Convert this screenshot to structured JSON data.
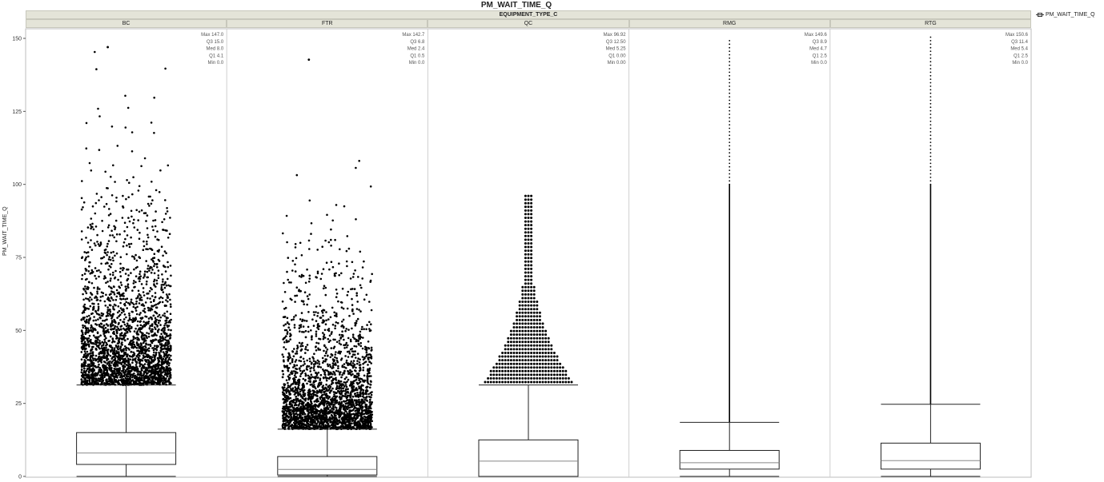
{
  "chart_title": "PM_WAIT_TIME_Q",
  "group_header": "EQUIPMENT_TYPE_C",
  "y_axis_label": "PM_WAIT_TIME_Q",
  "legend_label": "PM_WAIT_TIME_Q",
  "colors": {
    "points": "#000000",
    "box": "#222222",
    "median": "#888888",
    "header_bg": "#e4e4d8",
    "grid": "#d6d6d6"
  },
  "chart_data": {
    "type": "box",
    "ylim": [
      0,
      150
    ],
    "yticks": [
      0,
      25,
      50,
      75,
      100,
      125,
      150
    ],
    "panels": [
      {
        "label": "BC",
        "stats": [
          [
            "Max",
            "147.0"
          ],
          [
            "Q3",
            "15.0"
          ],
          [
            "Med",
            "8.0"
          ],
          [
            "Q1",
            "4.1"
          ],
          [
            "Min",
            "0.0"
          ]
        ],
        "box": {
          "min": 0,
          "q1": 4.1,
          "median": 8.0,
          "q3": 15.0,
          "upper_whisker": 31.3
        },
        "outliers_max": 147.0,
        "density": "heavy"
      },
      {
        "label": "FTR",
        "stats": [
          [
            "Max",
            "142.7"
          ],
          [
            "Q3",
            "6.8"
          ],
          [
            "Med",
            "2.4"
          ],
          [
            "Q1",
            "0.5"
          ],
          [
            "Min",
            "0.0"
          ]
        ],
        "box": {
          "min": 0,
          "q1": 0.5,
          "median": 2.4,
          "q3": 6.8,
          "upper_whisker": 16.2
        },
        "outliers_max": 142.7,
        "density": "heavy"
      },
      {
        "label": "QC",
        "stats": [
          [
            "Max",
            "96.92"
          ],
          [
            "Q3",
            "12.50"
          ],
          [
            "Med",
            "5.25"
          ],
          [
            "Q1",
            "0.00"
          ],
          [
            "Min",
            "0.00"
          ]
        ],
        "box": {
          "min": 0,
          "q1": 0,
          "median": 5.25,
          "q3": 12.5,
          "upper_whisker": 31.3
        },
        "outliers_max": 96.92,
        "density": "beeswarm"
      },
      {
        "label": "RMG",
        "stats": [
          [
            "Max",
            "149.6"
          ],
          [
            "Q3",
            "8.9"
          ],
          [
            "Med",
            "4.7"
          ],
          [
            "Q1",
            "2.5"
          ],
          [
            "Min",
            "0.0"
          ]
        ],
        "box": {
          "min": 0,
          "q1": 2.5,
          "median": 4.7,
          "q3": 8.9,
          "upper_whisker": 18.5
        },
        "outliers_max": 149.6,
        "density": "line"
      },
      {
        "label": "RTG",
        "stats": [
          [
            "Max",
            "150.6"
          ],
          [
            "Q3",
            "11.4"
          ],
          [
            "Med",
            "5.4"
          ],
          [
            "Q1",
            "2.5"
          ],
          [
            "Min",
            "0.0"
          ]
        ],
        "box": {
          "min": 0,
          "q1": 2.5,
          "median": 5.4,
          "q3": 11.4,
          "upper_whisker": 24.7
        },
        "outliers_max": 150.6,
        "density": "line"
      }
    ]
  }
}
